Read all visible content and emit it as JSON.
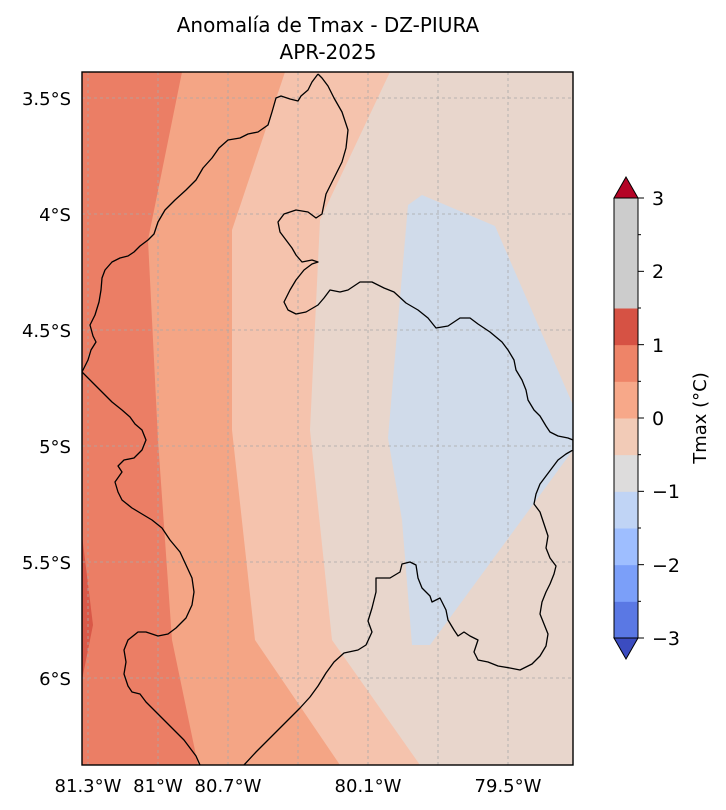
{
  "title": {
    "line1": "Anomalía de Tmax - DZ-PIURA",
    "line2": "APR-2025"
  },
  "axes": {
    "x_ticks": [
      "81.3°W",
      "81°W",
      "80.7°W",
      "80.1°W",
      "79.5°W"
    ],
    "y_ticks": [
      "3.5°S",
      "4°S",
      "4.5°S",
      "5°S",
      "5.5°S",
      "6°S"
    ]
  },
  "colorbar": {
    "label": "Tmax (°C)",
    "ticks": [
      "3",
      "2",
      "1",
      "0",
      "−1",
      "−2",
      "−3"
    ],
    "range": [
      -3,
      3
    ],
    "levels_per_unit": 2,
    "extend": "both",
    "colors": [
      "#3b4cc0",
      "#5a78e4",
      "#7b9ff9",
      "#9ebeff",
      "#c0d4f5",
      "#dddcdc",
      "#f2cbb7",
      "#f7a889",
      "#ee8468",
      "#d65244",
      "#b40426"
    ],
    "field_colors": {
      "anom_0_to_neg05": "#d0dbea",
      "anom_0_to_05": "#e8d6cc",
      "anom_05_to_1": "#f5c3ad",
      "anom_1_to_15": "#f4a585",
      "anom_15_to_2": "#eb7e65",
      "anom_2_to_25": "#d95848"
    }
  }
}
